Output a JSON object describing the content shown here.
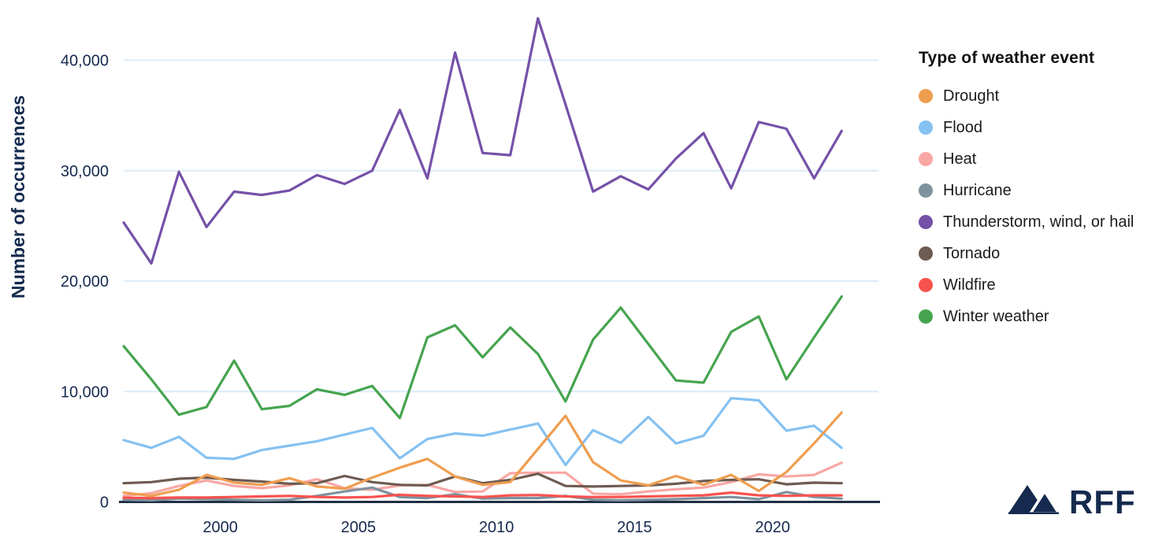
{
  "colors": {
    "navy": "#152A4E",
    "axis_line": "#1F3044",
    "gridline": "#DCECF9",
    "background": "#FFFFFF",
    "legend_text": "#1B1B1B"
  },
  "y_axis": {
    "title": "Number of occurrences",
    "tick_labels": [
      "0",
      "10,000",
      "20,000",
      "30,000",
      "40,000"
    ],
    "tick_values": [
      0,
      10000,
      20000,
      30000,
      40000
    ]
  },
  "x_axis": {
    "tick_labels": [
      "2000",
      "2005",
      "2010",
      "2015",
      "2020"
    ],
    "tick_values": [
      2000,
      2005,
      2010,
      2015,
      2020
    ]
  },
  "legend": {
    "title": "Type of weather event",
    "items": [
      {
        "label": "Drought",
        "color": "#EF9D4F"
      },
      {
        "label": "Flood",
        "color": "#85C1F1"
      },
      {
        "label": "Heat",
        "color": "#F9A7A4"
      },
      {
        "label": "Hurricane",
        "color": "#7E929E"
      },
      {
        "label": "Thunderstorm, wind, or hail",
        "color": "#7551A8"
      },
      {
        "label": "Tornado",
        "color": "#6E5B51"
      },
      {
        "label": "Wildfire",
        "color": "#F8524E"
      },
      {
        "label": "Winter weather",
        "color": "#46A44F"
      }
    ]
  },
  "branding": {
    "logo_text": "RFF",
    "logo_icon": "mountain-icon"
  },
  "chart_data": {
    "type": "line",
    "title": "",
    "xlabel": "",
    "ylabel": "Number of occurrences",
    "x_years": [
      1996,
      1997,
      1998,
      1999,
      2000,
      2001,
      2002,
      2003,
      2004,
      2005,
      2006,
      2007,
      2008,
      2009,
      2010,
      2011,
      2012,
      2013,
      2014,
      2015,
      2016,
      2017,
      2018,
      2019,
      2020,
      2021,
      2022
    ],
    "ylim": [
      0,
      45000
    ],
    "grid": "horizontal",
    "legend_position": "right",
    "series": [
      {
        "name": "Drought",
        "color": "#EF9D4F",
        "values": [
          850,
          550,
          1100,
          2450,
          1750,
          1550,
          2150,
          1400,
          1200,
          2200,
          3100,
          3900,
          2300,
          1550,
          1800,
          4800,
          7800,
          3600,
          1950,
          1500,
          2350,
          1550,
          2450,
          1000,
          2700,
          5300,
          8100
        ]
      },
      {
        "name": "Flood",
        "color": "#85C1F1",
        "values": [
          5600,
          4900,
          5900,
          4000,
          3900,
          4700,
          5100,
          5500,
          6100,
          6700,
          3950,
          5700,
          6200,
          6000,
          6550,
          7100,
          3350,
          6500,
          5350,
          7700,
          5300,
          6000,
          9400,
          9200,
          6450,
          6900,
          4900
        ]
      },
      {
        "name": "Heat",
        "color": "#F9A7A4",
        "values": [
          550,
          800,
          1450,
          1950,
          1450,
          1250,
          1500,
          2050,
          1250,
          1100,
          1500,
          1550,
          900,
          950,
          2600,
          2650,
          2650,
          750,
          700,
          950,
          1150,
          1300,
          1800,
          2500,
          2300,
          2450,
          3550
        ]
      },
      {
        "name": "Hurricane",
        "color": "#7E929E",
        "values": [
          200,
          150,
          300,
          250,
          200,
          150,
          200,
          550,
          950,
          1300,
          450,
          350,
          700,
          300,
          350,
          350,
          550,
          200,
          150,
          200,
          250,
          350,
          450,
          250,
          900,
          450,
          300
        ]
      },
      {
        "name": "Thunderstorm, wind, or hail",
        "color": "#7551A8",
        "values": [
          25300,
          21600,
          29900,
          24900,
          28100,
          27800,
          28200,
          29600,
          28800,
          30000,
          35500,
          29300,
          40700,
          31600,
          31400,
          43800,
          36000,
          28100,
          29500,
          28300,
          31100,
          33400,
          28400,
          34400,
          33800,
          29300,
          33600
        ]
      },
      {
        "name": "Tornado",
        "color": "#6E5B51",
        "values": [
          1700,
          1800,
          2100,
          2200,
          2000,
          1850,
          1650,
          1700,
          2350,
          1800,
          1550,
          1500,
          2300,
          1700,
          2000,
          2550,
          1450,
          1400,
          1450,
          1500,
          1650,
          1900,
          2000,
          2050,
          1600,
          1750,
          1700
        ]
      },
      {
        "name": "Wildfire",
        "color": "#F8524E",
        "values": [
          380,
          350,
          400,
          400,
          450,
          500,
          550,
          450,
          400,
          450,
          650,
          550,
          500,
          450,
          600,
          630,
          500,
          440,
          450,
          500,
          550,
          600,
          850,
          600,
          550,
          600,
          600
        ]
      },
      {
        "name": "Winter weather",
        "color": "#46A44F",
        "values": [
          14100,
          11100,
          7900,
          8600,
          12800,
          8400,
          8700,
          10200,
          9700,
          10500,
          7600,
          14900,
          16000,
          13100,
          15800,
          13400,
          9100,
          14700,
          17600,
          14300,
          11000,
          10800,
          15400,
          16800,
          11100,
          14900,
          18600
        ]
      }
    ],
    "draw_order": [
      "Flood",
      "Heat",
      "Hurricane",
      "Tornado",
      "Wildfire",
      "Drought",
      "Winter weather",
      "Thunderstorm, wind, or hail"
    ]
  }
}
